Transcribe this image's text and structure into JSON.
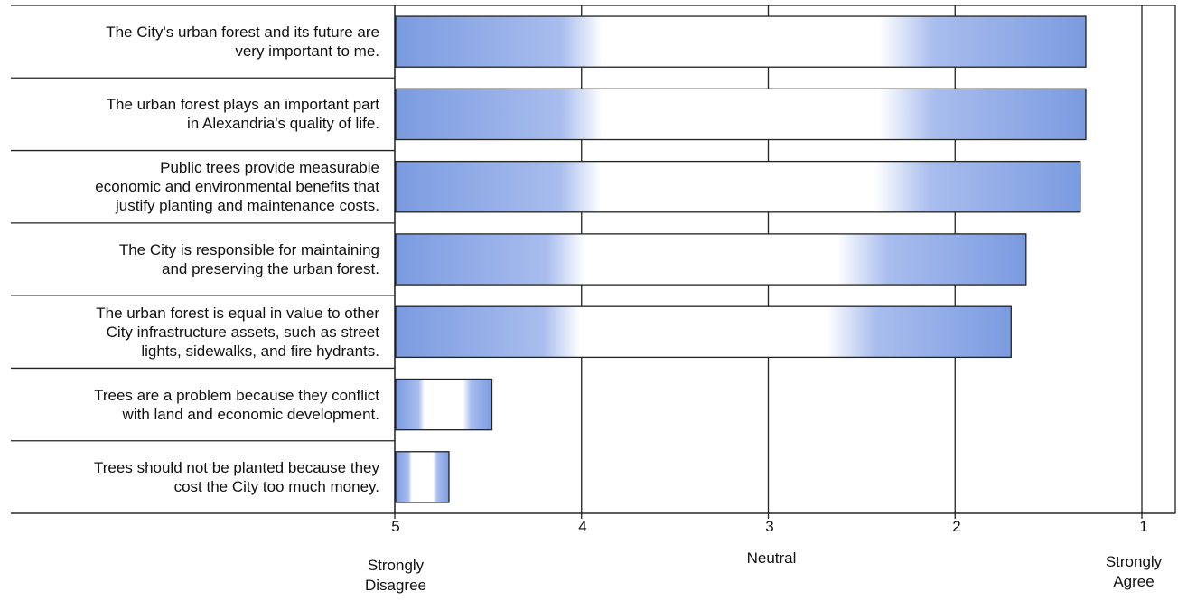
{
  "chart_data": {
    "type": "bar",
    "orientation": "horizontal",
    "title": "",
    "xlabel": "",
    "ylabel": "",
    "xlim": [
      5,
      1
    ],
    "x_reversed": true,
    "xticks": [
      5,
      4,
      3,
      2,
      1
    ],
    "scale_anchors": {
      "left": "Strongly\nDisagree",
      "center": "Neutral",
      "right": "Strongly\nAgree"
    },
    "grid": "vertical",
    "categories": [
      "The City's urban forest and its future are very important to me.",
      "The urban forest plays an important part in Alexandria's quality of life.",
      "Public trees provide measurable economic and environmental benefits that justify planting and maintenance costs.",
      "The City is responsible for maintaining and preserving the urban forest.",
      "The urban forest is equal in value to other City infrastructure assets, such as street lights, sidewalks, and fire hydrants.",
      "Trees are a problem because they conflict with land and economic development.",
      "Trees should not be planted because they cost the City too much money."
    ],
    "category_lines": [
      [
        "The City's urban forest and its future are",
        "very important to me."
      ],
      [
        "The urban forest plays an important part",
        "in Alexandria's quality of life."
      ],
      [
        "Public trees provide measurable",
        "economic and environmental benefits that",
        "justify planting and maintenance costs."
      ],
      [
        "The City is responsible for maintaining",
        "and preserving the urban forest."
      ],
      [
        "The urban forest is equal in value to other",
        "City infrastructure assets, such as street",
        "lights, sidewalks, and fire hydrants."
      ],
      [
        "Trees are a problem because they conflict",
        "with land and economic development."
      ],
      [
        "Trees should not be planted because they",
        "cost the City too much money."
      ]
    ],
    "values": [
      1.3,
      1.3,
      1.33,
      1.62,
      1.7,
      4.48,
      4.71
    ],
    "bar_color": "#7b9be0"
  }
}
